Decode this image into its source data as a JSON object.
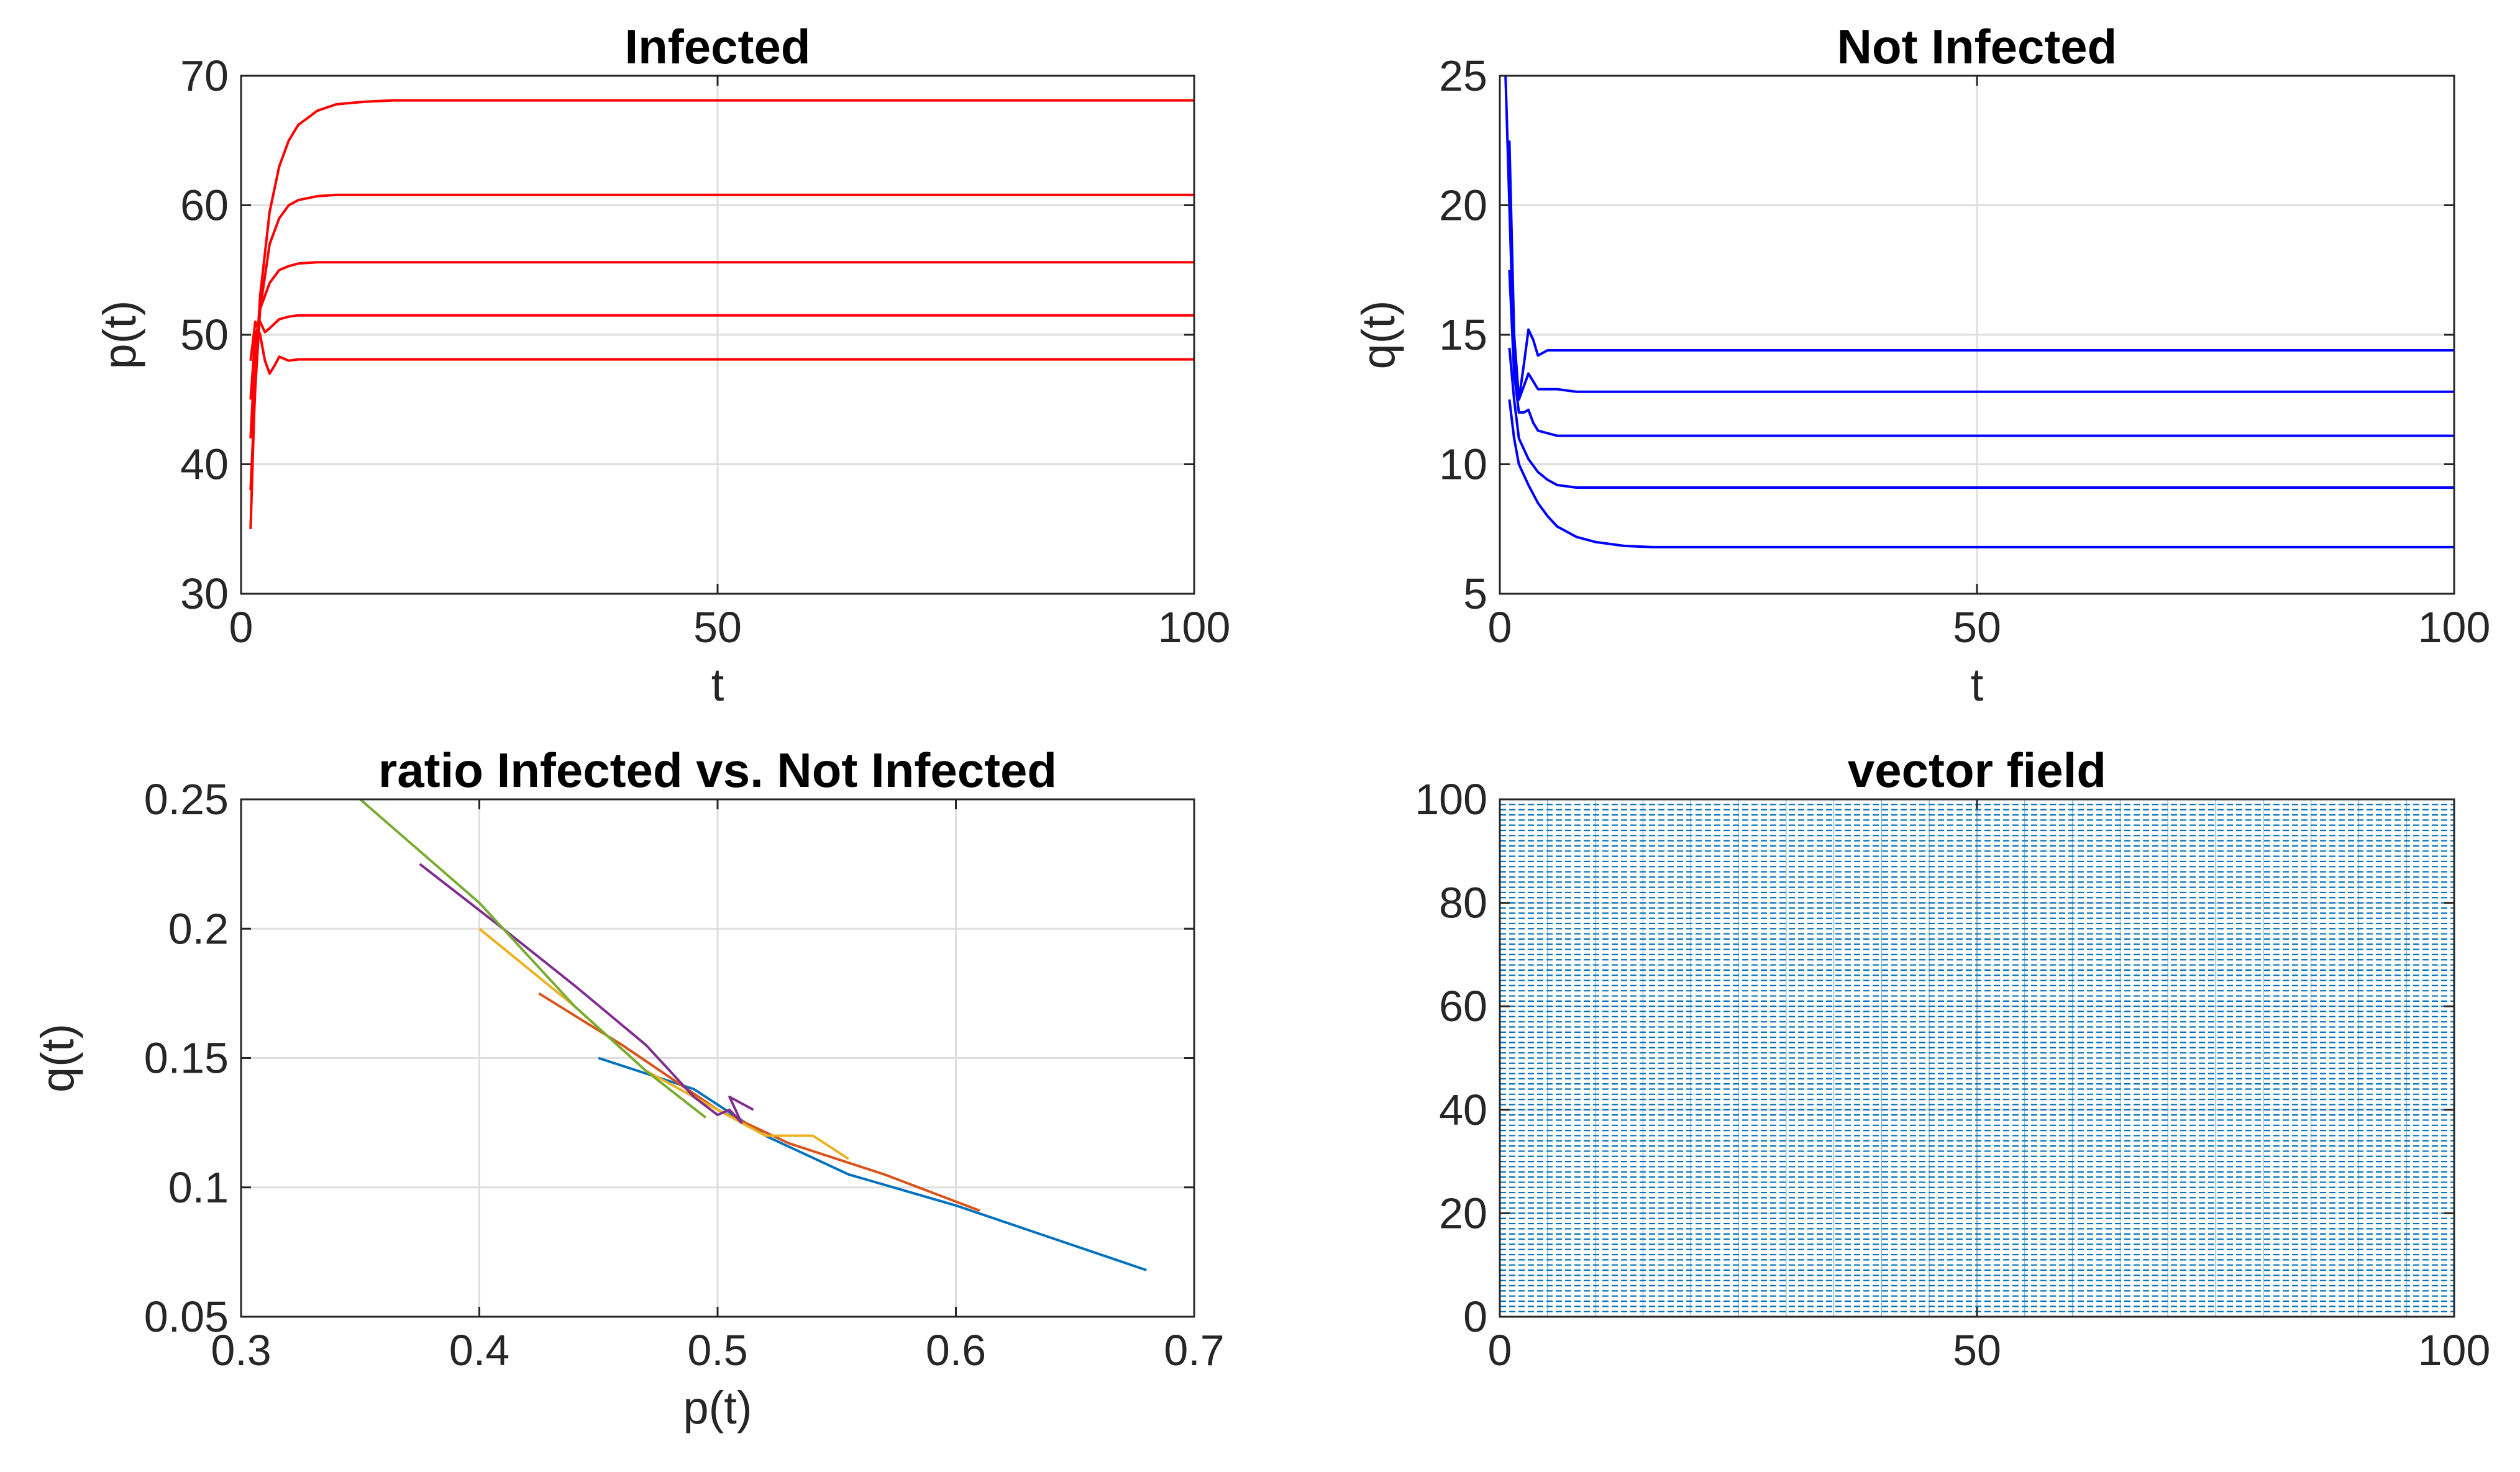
{
  "chart_data": [
    {
      "type": "line",
      "title": "Infected",
      "xlabel": "t",
      "ylabel": "p(t)",
      "xlim": [
        0,
        100
      ],
      "ylim": [
        30,
        70
      ],
      "xticks": [
        0,
        50,
        100
      ],
      "yticks": [
        30,
        40,
        50,
        60,
        70
      ],
      "grid": true,
      "color": "#ff0000",
      "series": [
        {
          "x": [
            1,
            1.5,
            2,
            3,
            4,
            5,
            6,
            8,
            10,
            13,
            16,
            20,
            30,
            50,
            100
          ],
          "y": [
            35,
            47,
            53,
            59.5,
            63,
            65,
            66.2,
            67.3,
            67.8,
            68.0,
            68.1,
            68.1,
            68.1,
            68.1,
            68.1
          ]
        },
        {
          "x": [
            1,
            1.5,
            2,
            3,
            4,
            5,
            6,
            8,
            10,
            15,
            30,
            100
          ],
          "y": [
            38,
            46,
            52,
            57,
            59,
            60,
            60.4,
            60.7,
            60.8,
            60.8,
            60.8,
            60.8
          ]
        },
        {
          "x": [
            1,
            1.5,
            2,
            3,
            4,
            5,
            6,
            8,
            12,
            20,
            100
          ],
          "y": [
            42,
            49,
            52,
            54,
            55,
            55.3,
            55.5,
            55.6,
            55.6,
            55.6,
            55.6
          ]
        },
        {
          "x": [
            1,
            1.5,
            2,
            2.5,
            3,
            4,
            5,
            6,
            8,
            12,
            100
          ],
          "y": [
            45,
            50,
            51,
            50.2,
            50.5,
            51.2,
            51.4,
            51.5,
            51.5,
            51.5,
            51.5
          ]
        },
        {
          "x": [
            1,
            1.5,
            2,
            2.5,
            3,
            3.5,
            4,
            5,
            6,
            8,
            100
          ],
          "y": [
            48,
            51,
            50,
            48,
            47,
            47.6,
            48.3,
            48.0,
            48.1,
            48.1,
            48.1
          ]
        }
      ]
    },
    {
      "type": "line",
      "title": "Not Infected",
      "xlabel": "t",
      "ylabel": "q(t)",
      "xlim": [
        0,
        100
      ],
      "ylim": [
        5,
        25
      ],
      "xticks": [
        0,
        50,
        100
      ],
      "yticks": [
        5,
        10,
        15,
        20,
        25
      ],
      "grid": true,
      "color": "#0000ff",
      "series": [
        {
          "x": [
            0.6,
            1,
            1.5,
            2,
            2.5,
            3,
            3.5,
            4,
            5,
            6,
            8,
            100
          ],
          "y": [
            25,
            20,
            14,
            12.5,
            13.8,
            15.2,
            14.8,
            14.2,
            14.4,
            14.4,
            14.4,
            14.4
          ]
        },
        {
          "x": [
            1,
            1.5,
            2,
            2.5,
            3,
            3.5,
            4,
            5,
            6,
            8,
            100
          ],
          "y": [
            22.5,
            15,
            12.5,
            13,
            13.5,
            13.2,
            12.9,
            12.9,
            12.9,
            12.8,
            12.8
          ]
        },
        {
          "x": [
            1,
            1.5,
            2,
            2.5,
            3,
            3.5,
            4,
            5,
            6,
            8,
            12,
            100
          ],
          "y": [
            17.5,
            13.5,
            12,
            12,
            12.1,
            11.6,
            11.3,
            11.2,
            11.1,
            11.1,
            11.1,
            11.1
          ]
        },
        {
          "x": [
            1,
            1.5,
            2,
            3,
            4,
            5,
            6,
            8,
            10,
            15,
            100
          ],
          "y": [
            14.5,
            12.5,
            11,
            10.2,
            9.7,
            9.4,
            9.2,
            9.1,
            9.1,
            9.1,
            9.1
          ]
        },
        {
          "x": [
            1,
            1.5,
            2,
            3,
            4,
            5,
            6,
            8,
            10,
            13,
            16,
            20,
            100
          ],
          "y": [
            12.5,
            11,
            10,
            9.2,
            8.5,
            8.0,
            7.6,
            7.2,
            7.0,
            6.85,
            6.8,
            6.8,
            6.8
          ]
        }
      ]
    },
    {
      "type": "line",
      "title": "ratio Infected vs. Not Infected",
      "xlabel": "p(t)",
      "ylabel": "q(t)",
      "xlim": [
        0.3,
        0.7
      ],
      "ylim": [
        0.05,
        0.25
      ],
      "xticks": [
        0.3,
        0.4,
        0.5,
        0.6,
        0.7
      ],
      "yticks": [
        0.05,
        0.1,
        0.15,
        0.2,
        0.25
      ],
      "ytick_labels": [
        "0.05",
        "0.1",
        "0.15",
        "0.2",
        "0.25"
      ],
      "grid": true,
      "series": [
        {
          "color": "#0072bd",
          "x": [
            0.45,
            0.49,
            0.52,
            0.555,
            0.6,
            0.68
          ],
          "y": [
            0.15,
            0.138,
            0.12,
            0.105,
            0.093,
            0.068
          ]
        },
        {
          "color": "#d95319",
          "x": [
            0.425,
            0.46,
            0.5,
            0.53,
            0.57,
            0.61
          ],
          "y": [
            0.175,
            0.155,
            0.13,
            0.117,
            0.105,
            0.091
          ]
        },
        {
          "color": "#edb120",
          "x": [
            0.4,
            0.44,
            0.47,
            0.5,
            0.52,
            0.54,
            0.555
          ],
          "y": [
            0.2,
            0.17,
            0.145,
            0.13,
            0.12,
            0.12,
            0.111
          ]
        },
        {
          "color": "#7e2f8e",
          "x": [
            0.375,
            0.41,
            0.44,
            0.47,
            0.49,
            0.5,
            0.505,
            0.51,
            0.505,
            0.515
          ],
          "y": [
            0.225,
            0.2,
            0.178,
            0.155,
            0.135,
            0.128,
            0.13,
            0.125,
            0.135,
            0.13
          ]
        },
        {
          "color": "#77ac30",
          "x": [
            0.35,
            0.4,
            0.44,
            0.47,
            0.495
          ],
          "y": [
            0.25,
            0.21,
            0.17,
            0.145,
            0.127
          ]
        }
      ]
    },
    {
      "type": "vector_field",
      "title": "vector field",
      "xlabel": "",
      "ylabel": "",
      "xlim": [
        0,
        100
      ],
      "ylim": [
        0,
        100
      ],
      "xticks": [
        0,
        50,
        100
      ],
      "yticks": [
        0,
        20,
        40,
        60,
        80,
        100
      ],
      "grid": true,
      "color": "#0072bd",
      "grid_spacing": 1
    }
  ]
}
